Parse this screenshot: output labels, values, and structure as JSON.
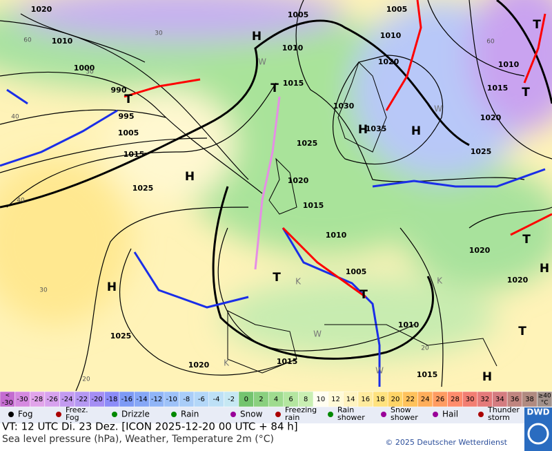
{
  "map": {
    "pressure_labels": [
      "1020",
      "1005",
      "1005",
      "1010",
      "1010",
      "1000",
      "1010",
      "1020",
      "990",
      "995",
      "1005",
      "1015",
      "1015",
      "1030",
      "1035",
      "1025",
      "1025",
      "1020",
      "1015",
      "1010",
      "1005",
      "1025",
      "1020",
      "1015",
      "1010",
      "1015",
      "1010",
      "1015",
      "1020",
      "1025",
      "1020",
      "1020"
    ],
    "centers": [
      "H",
      "H",
      "H",
      "H",
      "H",
      "H",
      "H",
      "T",
      "T",
      "T",
      "T",
      "T",
      "T",
      "T",
      "T"
    ],
    "marks": [
      "W",
      "W",
      "K",
      "W",
      "K",
      "K",
      "W"
    ],
    "temperatures": [
      "60",
      "30",
      "40",
      "40",
      "30",
      "20",
      "60",
      "20",
      "30"
    ]
  },
  "legend": {
    "scale": [
      "<",
      "-30",
      "-30",
      "-28",
      "-26",
      "-24",
      "-22",
      "-20",
      "-18",
      "-16",
      "-14",
      "-12",
      "-10",
      "-8",
      "-6",
      "-4",
      "-2",
      "0",
      "2",
      "4",
      "6",
      "8",
      "10",
      "12",
      "14",
      "16",
      "18",
      "20",
      "22",
      "24",
      "26",
      "28",
      "30",
      "32",
      "34",
      "36",
      "38",
      "≥40",
      "°C"
    ],
    "weather": [
      [
        "Fog"
      ],
      [
        "Freez.",
        "Fog"
      ],
      [
        "Drizzle"
      ],
      [
        "Rain"
      ],
      [
        "Snow"
      ],
      [
        "Freezing",
        "rain"
      ],
      [
        "Rain",
        "shower"
      ],
      [
        "Snow",
        "shower"
      ],
      [
        "Hail"
      ],
      [
        "Thunder",
        "storm"
      ]
    ]
  },
  "footer": {
    "valid": "VT: 12 UTC Di.  23 Dez. [ICON 2025-12-20  00 UTC + 84 h]",
    "subtitle": "Sea level pressure (hPa), Weather, Temperature 2m (°C)",
    "copyright": "© 2025 Deutscher Wetterdienst",
    "logo": "DWD"
  }
}
